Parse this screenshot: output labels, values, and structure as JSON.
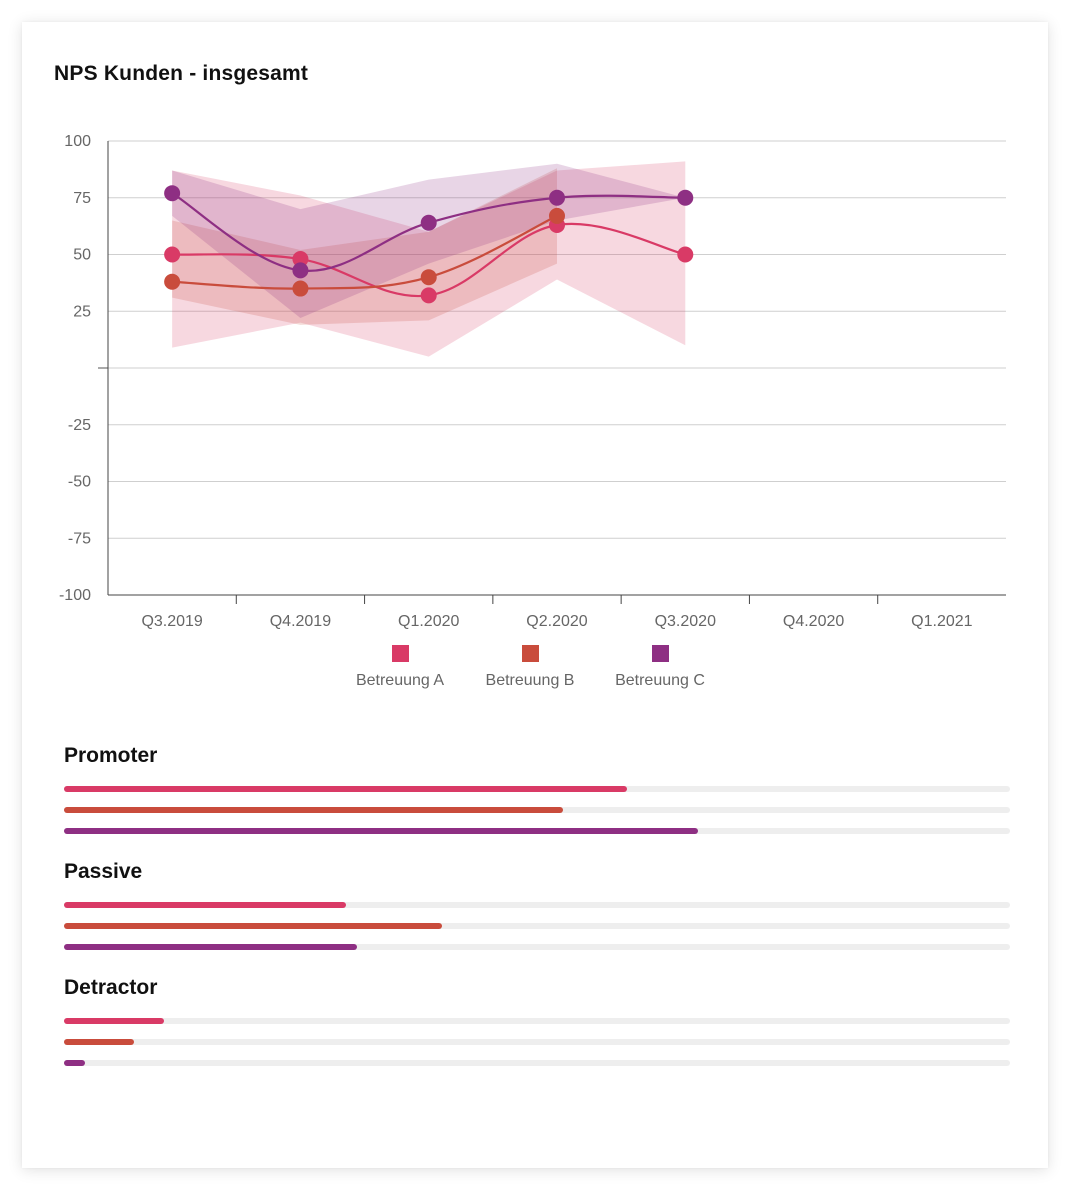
{
  "card": {
    "title": "NPS Kunden - insgesamt"
  },
  "colors": {
    "a": "#d93a66",
    "b": "#c94c3c",
    "c": "#8e2f83"
  },
  "chart_data": {
    "type": "line",
    "title": "NPS Kunden - insgesamt",
    "xlabel": "",
    "ylabel": "",
    "ylim": [
      -100,
      100
    ],
    "yticks": [
      {
        "value": 100,
        "label": "100"
      },
      {
        "value": 75,
        "label": "75"
      },
      {
        "value": 50,
        "label": "50"
      },
      {
        "value": 25,
        "label": "25"
      },
      {
        "value": 0,
        "label": ""
      },
      {
        "value": -25,
        "label": "-25"
      },
      {
        "value": -50,
        "label": "-50"
      },
      {
        "value": -75,
        "label": "-75"
      },
      {
        "value": -100,
        "label": "-100"
      }
    ],
    "categories": [
      "Q3.2019",
      "Q4.2019",
      "Q1.2020",
      "Q2.2020",
      "Q3.2020",
      "Q4.2020",
      "Q1.2021"
    ],
    "grid": true,
    "legend": "bottom",
    "series": [
      {
        "name": "Betreuung A",
        "color": "#d93a66",
        "values": [
          50,
          48,
          32,
          63,
          50,
          null,
          null
        ],
        "range_low": [
          9,
          20,
          5,
          39,
          10,
          null,
          null
        ],
        "range_high": [
          87,
          76,
          60,
          87,
          91,
          null,
          null
        ]
      },
      {
        "name": "Betreuung B",
        "color": "#c94c3c",
        "values": [
          38,
          35,
          40,
          67,
          null,
          null,
          null
        ],
        "range_low": [
          31,
          19,
          21,
          46,
          null,
          null,
          null
        ],
        "range_high": [
          65,
          52,
          60,
          88,
          null,
          null,
          null
        ]
      },
      {
        "name": "Betreuung C",
        "color": "#8e2f83",
        "values": [
          77,
          43,
          64,
          75,
          75,
          null,
          null
        ],
        "range_low": [
          67,
          22,
          46,
          65,
          75,
          null,
          null
        ],
        "range_high": [
          87,
          70,
          83,
          90,
          75,
          null,
          null
        ]
      }
    ]
  },
  "bar_groups": [
    {
      "title": "Promoter",
      "values": [
        0.595,
        0.527,
        0.67
      ]
    },
    {
      "title": "Passive",
      "values": [
        0.298,
        0.4,
        0.31
      ]
    },
    {
      "title": "Detractor",
      "values": [
        0.106,
        0.074,
        0.022
      ]
    }
  ]
}
